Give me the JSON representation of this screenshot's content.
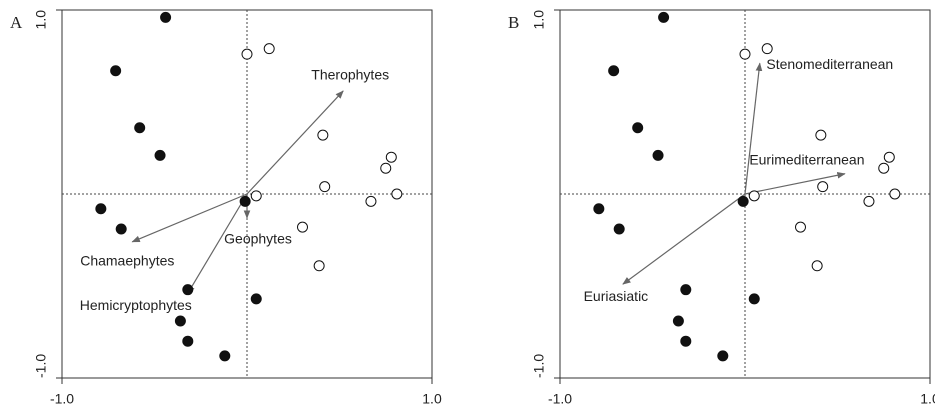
{
  "chart_data": [
    {
      "type": "scatter",
      "panel": "A",
      "xlim": [
        -1,
        1
      ],
      "ylim": [
        -1,
        1
      ],
      "xticks": [
        {
          "value": -1,
          "label": "-1.0"
        },
        {
          "value": 1,
          "label": "1.0"
        }
      ],
      "yticks": [
        {
          "value": -1,
          "label": "-1.0"
        },
        {
          "value": 1,
          "label": "1.0"
        }
      ],
      "reference_lines": {
        "x": 0,
        "y": 0
      },
      "series": [
        {
          "fill": "#111111",
          "x": [
            -0.44,
            -0.71,
            -0.58,
            -0.47,
            -0.79,
            -0.68,
            -0.01,
            -0.32,
            0.05,
            -0.36,
            -0.32,
            -0.12
          ],
          "values": [
            0.96,
            0.67,
            0.36,
            0.21,
            -0.08,
            -0.19,
            -0.04,
            -0.52,
            -0.57,
            -0.69,
            -0.8,
            -0.88
          ]
        },
        {
          "fill": "#ffffff",
          "x": [
            0,
            0.12,
            0.41,
            0.78,
            0.75,
            0.42,
            0.81,
            0.05,
            0.67,
            0.3,
            0.39
          ],
          "values": [
            0.76,
            0.79,
            0.32,
            0.2,
            0.14,
            0.04,
            0,
            -0.01,
            -0.04,
            -0.18,
            -0.39
          ]
        }
      ],
      "arrow_color": "#666666",
      "arrows": [
        {
          "label": "Therophytes",
          "x": 0.52,
          "y": 0.56
        },
        {
          "label": "Chamaephytes",
          "x": -0.62,
          "y": -0.26
        },
        {
          "label": "Hemicryptophytes",
          "x": -0.32,
          "y": -0.54
        },
        {
          "label": "Geophytes",
          "x": 0,
          "y": -0.13
        }
      ]
    },
    {
      "type": "scatter",
      "panel": "B",
      "xlim": [
        -1,
        1
      ],
      "ylim": [
        -1,
        1
      ],
      "xticks": [
        {
          "value": -1,
          "label": "-1.0"
        },
        {
          "value": 1,
          "label": "1.0"
        }
      ],
      "yticks": [
        {
          "value": -1,
          "label": "-1.0"
        },
        {
          "value": 1,
          "label": "1.0"
        }
      ],
      "reference_lines": {
        "x": 0,
        "y": 0
      },
      "series": [
        {
          "fill": "#111111",
          "x": [
            -0.44,
            -0.71,
            -0.58,
            -0.47,
            -0.79,
            -0.68,
            -0.01,
            -0.32,
            0.05,
            -0.36,
            -0.32,
            -0.12
          ],
          "values": [
            0.96,
            0.67,
            0.36,
            0.21,
            -0.08,
            -0.19,
            -0.04,
            -0.52,
            -0.57,
            -0.69,
            -0.8,
            -0.88
          ]
        },
        {
          "fill": "#ffffff",
          "x": [
            0,
            0.12,
            0.41,
            0.78,
            0.75,
            0.42,
            0.81,
            0.05,
            0.67,
            0.3,
            0.39
          ],
          "values": [
            0.76,
            0.79,
            0.32,
            0.2,
            0.14,
            0.04,
            0,
            -0.01,
            -0.04,
            -0.18,
            -0.39
          ]
        }
      ],
      "arrow_color": "#666666",
      "arrows": [
        {
          "label": "Stenomediterranean",
          "x": 0.08,
          "y": 0.71
        },
        {
          "label": "Eurimediterranean",
          "x": 0.54,
          "y": 0.11
        },
        {
          "label": "Euriasiatic",
          "x": -0.66,
          "y": -0.49
        }
      ]
    }
  ]
}
